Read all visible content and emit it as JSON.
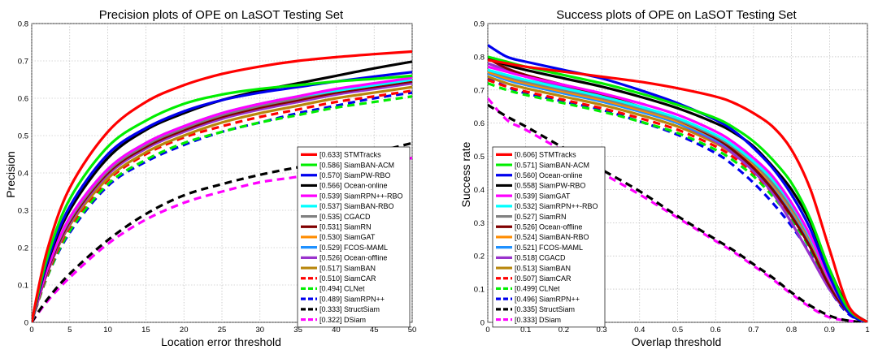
{
  "chart_data": [
    {
      "type": "line",
      "title": "Precision plots of OPE on LaSOT Testing Set",
      "xlabel": "Location error threshold",
      "ylabel": "Precision",
      "xlim": [
        0,
        50
      ],
      "ylim": [
        0,
        0.8
      ],
      "xticks": [
        0,
        5,
        10,
        15,
        20,
        25,
        30,
        35,
        40,
        45,
        50
      ],
      "yticks": [
        0,
        0.1,
        0.2,
        0.3,
        0.4,
        0.5,
        0.6,
        0.7,
        0.8
      ],
      "x": [
        0,
        2,
        5,
        10,
        15,
        20,
        25,
        30,
        35,
        40,
        45,
        50
      ],
      "legend_position": "bottom-right",
      "grid": true,
      "series": [
        {
          "legend": "[0.633] STMTracks",
          "color": "#ff0000",
          "dashed": false,
          "values": [
            0,
            0.19,
            0.36,
            0.51,
            0.59,
            0.635,
            0.665,
            0.685,
            0.7,
            0.71,
            0.718,
            0.725
          ]
        },
        {
          "legend": "[0.586] SiamBAN-ACM",
          "color": "#00ee00",
          "dashed": false,
          "values": [
            0,
            0.17,
            0.33,
            0.47,
            0.54,
            0.585,
            0.61,
            0.625,
            0.635,
            0.645,
            0.652,
            0.66
          ]
        },
        {
          "legend": "[0.570] SiamPW-RBO",
          "color": "#0000ee",
          "dashed": false,
          "values": [
            0,
            0.16,
            0.31,
            0.45,
            0.52,
            0.565,
            0.595,
            0.615,
            0.63,
            0.645,
            0.658,
            0.67
          ]
        },
        {
          "legend": "[0.566] Ocean-online",
          "color": "#000000",
          "dashed": false,
          "values": [
            0,
            0.155,
            0.3,
            0.44,
            0.515,
            0.56,
            0.595,
            0.62,
            0.64,
            0.66,
            0.68,
            0.698
          ]
        },
        {
          "legend": "[0.539] SiamRPN++-RBO",
          "color": "#ff00ff",
          "dashed": false,
          "values": [
            0,
            0.14,
            0.28,
            0.41,
            0.48,
            0.525,
            0.56,
            0.585,
            0.605,
            0.625,
            0.64,
            0.655
          ]
        },
        {
          "legend": "[0.537] SiamBAN-RBO",
          "color": "#00ffff",
          "dashed": false,
          "values": [
            0,
            0.14,
            0.28,
            0.41,
            0.48,
            0.525,
            0.56,
            0.585,
            0.605,
            0.62,
            0.635,
            0.65
          ]
        },
        {
          "legend": "[0.535] CGACD",
          "color": "#808080",
          "dashed": false,
          "values": [
            0,
            0.14,
            0.275,
            0.405,
            0.475,
            0.52,
            0.555,
            0.58,
            0.6,
            0.62,
            0.635,
            0.65
          ]
        },
        {
          "legend": "[0.531] SiamRN",
          "color": "#800000",
          "dashed": false,
          "values": [
            0,
            0.135,
            0.27,
            0.4,
            0.47,
            0.515,
            0.55,
            0.575,
            0.595,
            0.615,
            0.63,
            0.645
          ]
        },
        {
          "legend": "[0.530] SiamGAT",
          "color": "#ff8c00",
          "dashed": false,
          "values": [
            0,
            0.135,
            0.27,
            0.4,
            0.47,
            0.515,
            0.55,
            0.575,
            0.595,
            0.615,
            0.635,
            0.65
          ]
        },
        {
          "legend": "[0.529] FCOS-MAML",
          "color": "#1e90ff",
          "dashed": false,
          "values": [
            0,
            0.135,
            0.27,
            0.4,
            0.47,
            0.515,
            0.55,
            0.575,
            0.595,
            0.615,
            0.63,
            0.645
          ]
        },
        {
          "legend": "[0.526] Ocean-offline",
          "color": "#9932cc",
          "dashed": false,
          "values": [
            0,
            0.13,
            0.265,
            0.395,
            0.465,
            0.51,
            0.545,
            0.57,
            0.59,
            0.61,
            0.625,
            0.64
          ]
        },
        {
          "legend": "[0.517] SiamBAN",
          "color": "#b8860b",
          "dashed": false,
          "values": [
            0,
            0.13,
            0.26,
            0.385,
            0.455,
            0.5,
            0.535,
            0.56,
            0.58,
            0.6,
            0.615,
            0.63
          ]
        },
        {
          "legend": "[0.510] SiamCAR",
          "color": "#ff0000",
          "dashed": true,
          "values": [
            0,
            0.125,
            0.255,
            0.38,
            0.45,
            0.495,
            0.525,
            0.55,
            0.57,
            0.59,
            0.605,
            0.62
          ]
        },
        {
          "legend": "[0.494] CLNet",
          "color": "#00ee00",
          "dashed": true,
          "values": [
            0,
            0.12,
            0.245,
            0.37,
            0.435,
            0.48,
            0.51,
            0.535,
            0.555,
            0.575,
            0.59,
            0.605
          ]
        },
        {
          "legend": "[0.489] SiamRPN++",
          "color": "#0000ee",
          "dashed": true,
          "values": [
            0,
            0.12,
            0.24,
            0.365,
            0.43,
            0.475,
            0.51,
            0.535,
            0.56,
            0.58,
            0.6,
            0.615
          ]
        },
        {
          "legend": "[0.333] StructSiam",
          "color": "#000000",
          "dashed": true,
          "values": [
            0,
            0.06,
            0.13,
            0.22,
            0.29,
            0.34,
            0.37,
            0.395,
            0.415,
            0.43,
            0.455,
            0.48
          ]
        },
        {
          "legend": "[0.322] DSiam",
          "color": "#ff00ff",
          "dashed": true,
          "values": [
            0,
            0.055,
            0.12,
            0.21,
            0.275,
            0.32,
            0.35,
            0.375,
            0.39,
            0.41,
            0.425,
            0.44
          ]
        }
      ]
    },
    {
      "type": "line",
      "title": "Success plots of OPE on LaSOT Testing Set",
      "xlabel": "Overlap threshold",
      "ylabel": "Success rate",
      "xlim": [
        0,
        1
      ],
      "ylim": [
        0,
        0.9
      ],
      "xticks": [
        0,
        0.1,
        0.2,
        0.3,
        0.4,
        0.5,
        0.6,
        0.7,
        0.8,
        0.9,
        1
      ],
      "yticks": [
        0,
        0.1,
        0.2,
        0.3,
        0.4,
        0.5,
        0.6,
        0.7,
        0.8,
        0.9
      ],
      "x": [
        0,
        0.05,
        0.1,
        0.2,
        0.3,
        0.4,
        0.5,
        0.6,
        0.65,
        0.7,
        0.75,
        0.8,
        0.85,
        0.9,
        0.95,
        1.0
      ],
      "legend_position": "bottom-center",
      "grid": true,
      "series": [
        {
          "legend": "[0.606] STMTracks",
          "color": "#ff0000",
          "dashed": false,
          "values": [
            0.79,
            0.78,
            0.77,
            0.755,
            0.74,
            0.725,
            0.705,
            0.68,
            0.66,
            0.63,
            0.59,
            0.52,
            0.4,
            0.22,
            0.05,
            0.0
          ]
        },
        {
          "legend": "[0.571] SiamBAN-ACM",
          "color": "#00ee00",
          "dashed": false,
          "values": [
            0.8,
            0.785,
            0.77,
            0.745,
            0.72,
            0.69,
            0.655,
            0.615,
            0.585,
            0.545,
            0.49,
            0.42,
            0.31,
            0.16,
            0.04,
            0.0
          ]
        },
        {
          "legend": "[0.560] Ocean-online",
          "color": "#0000ee",
          "dashed": false,
          "values": [
            0.835,
            0.8,
            0.785,
            0.76,
            0.735,
            0.7,
            0.66,
            0.61,
            0.575,
            0.525,
            0.465,
            0.385,
            0.28,
            0.14,
            0.03,
            0.0
          ]
        },
        {
          "legend": "[0.558] SiamPW-RBO",
          "color": "#000000",
          "dashed": false,
          "values": [
            0.795,
            0.775,
            0.76,
            0.735,
            0.71,
            0.68,
            0.645,
            0.6,
            0.57,
            0.53,
            0.47,
            0.4,
            0.3,
            0.16,
            0.045,
            0.0
          ]
        },
        {
          "legend": "[0.539] SiamGAT",
          "color": "#ff00ff",
          "dashed": false,
          "values": [
            0.77,
            0.755,
            0.74,
            0.715,
            0.69,
            0.66,
            0.625,
            0.575,
            0.54,
            0.495,
            0.44,
            0.36,
            0.26,
            0.13,
            0.035,
            0.0
          ]
        },
        {
          "legend": "[0.532] SiamRPN++-RBO",
          "color": "#00ffff",
          "dashed": false,
          "values": [
            0.76,
            0.745,
            0.73,
            0.705,
            0.68,
            0.65,
            0.615,
            0.565,
            0.53,
            0.485,
            0.43,
            0.355,
            0.255,
            0.13,
            0.035,
            0.0
          ]
        },
        {
          "legend": "[0.527] SiamRN",
          "color": "#808080",
          "dashed": false,
          "values": [
            0.76,
            0.74,
            0.725,
            0.7,
            0.675,
            0.645,
            0.61,
            0.56,
            0.525,
            0.48,
            0.42,
            0.345,
            0.25,
            0.125,
            0.035,
            0.0
          ]
        },
        {
          "legend": "[0.526] Ocean-offline",
          "color": "#800000",
          "dashed": false,
          "values": [
            0.795,
            0.765,
            0.745,
            0.715,
            0.685,
            0.65,
            0.61,
            0.555,
            0.515,
            0.465,
            0.4,
            0.32,
            0.225,
            0.11,
            0.03,
            0.0
          ]
        },
        {
          "legend": "[0.524] SiamBAN-RBO",
          "color": "#ff8c00",
          "dashed": false,
          "values": [
            0.755,
            0.735,
            0.72,
            0.695,
            0.67,
            0.64,
            0.605,
            0.555,
            0.52,
            0.475,
            0.415,
            0.34,
            0.245,
            0.12,
            0.03,
            0.0
          ]
        },
        {
          "legend": "[0.521] FCOS-MAML",
          "color": "#1e90ff",
          "dashed": false,
          "values": [
            0.75,
            0.73,
            0.715,
            0.69,
            0.665,
            0.635,
            0.6,
            0.55,
            0.515,
            0.47,
            0.41,
            0.335,
            0.24,
            0.12,
            0.03,
            0.0
          ]
        },
        {
          "legend": "[0.518] CGACD",
          "color": "#9932cc",
          "dashed": false,
          "values": [
            0.78,
            0.76,
            0.74,
            0.71,
            0.68,
            0.645,
            0.6,
            0.545,
            0.505,
            0.455,
            0.39,
            0.3,
            0.2,
            0.1,
            0.03,
            0.0
          ]
        },
        {
          "legend": "[0.513] SiamBAN",
          "color": "#b8860b",
          "dashed": false,
          "values": [
            0.74,
            0.72,
            0.705,
            0.68,
            0.655,
            0.625,
            0.59,
            0.54,
            0.505,
            0.46,
            0.4,
            0.33,
            0.235,
            0.115,
            0.03,
            0.0
          ]
        },
        {
          "legend": "[0.507] SiamCAR",
          "color": "#ff0000",
          "dashed": true,
          "values": [
            0.73,
            0.71,
            0.695,
            0.67,
            0.645,
            0.615,
            0.58,
            0.53,
            0.495,
            0.45,
            0.39,
            0.32,
            0.23,
            0.11,
            0.03,
            0.0
          ]
        },
        {
          "legend": "[0.499] CLNet",
          "color": "#00ee00",
          "dashed": true,
          "values": [
            0.72,
            0.7,
            0.685,
            0.66,
            0.635,
            0.605,
            0.57,
            0.52,
            0.485,
            0.44,
            0.38,
            0.31,
            0.22,
            0.105,
            0.03,
            0.0
          ]
        },
        {
          "legend": "[0.496] SiamRPN++",
          "color": "#0000ee",
          "dashed": true,
          "values": [
            0.735,
            0.71,
            0.69,
            0.665,
            0.64,
            0.605,
            0.565,
            0.51,
            0.47,
            0.42,
            0.36,
            0.29,
            0.205,
            0.1,
            0.025,
            0.0
          ]
        },
        {
          "legend": "[0.335] StructSiam",
          "color": "#000000",
          "dashed": true,
          "values": [
            0.655,
            0.62,
            0.59,
            0.525,
            0.46,
            0.395,
            0.32,
            0.25,
            0.215,
            0.175,
            0.135,
            0.09,
            0.05,
            0.02,
            0.005,
            0.0
          ]
        },
        {
          "legend": "[0.333] DSiam",
          "color": "#ff00ff",
          "dashed": true,
          "values": [
            0.675,
            0.61,
            0.58,
            0.515,
            0.45,
            0.385,
            0.315,
            0.245,
            0.21,
            0.17,
            0.13,
            0.085,
            0.045,
            0.015,
            0.005,
            0.0
          ]
        }
      ]
    }
  ]
}
